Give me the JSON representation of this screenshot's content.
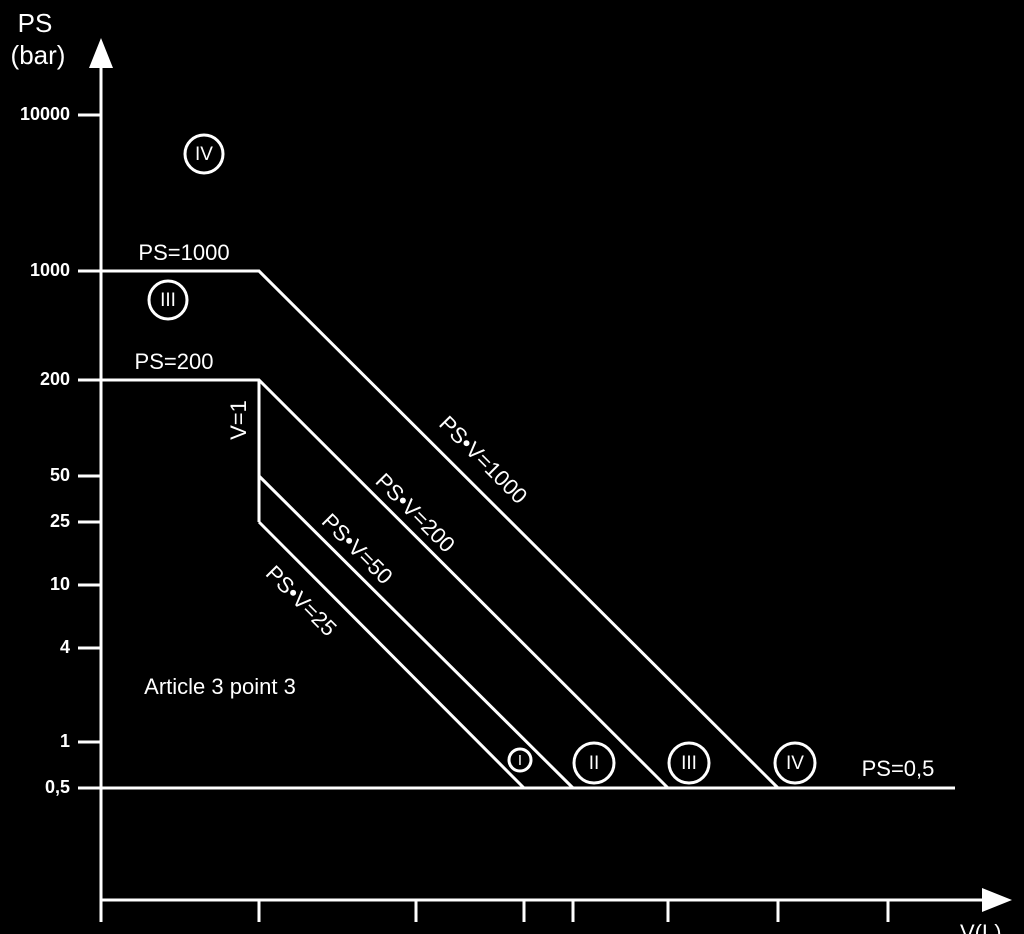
{
  "y_axis": {
    "title": "PS",
    "unit": "(bar)",
    "ticks": [
      "10000",
      "1000",
      "200",
      "50",
      "25",
      "10",
      "4",
      "1",
      "0,5"
    ]
  },
  "x_axis": {
    "title": "V(L)"
  },
  "lines": [
    "PS=1000",
    "PS=200",
    "V=1",
    "PS•V=1000",
    "PS•V=200",
    "PS•V=50",
    "PS•V=25",
    "PS=0,5"
  ],
  "categories": [
    "IV",
    "III",
    "I",
    "II",
    "III",
    "IV"
  ],
  "note": "Article 3 point 3"
}
